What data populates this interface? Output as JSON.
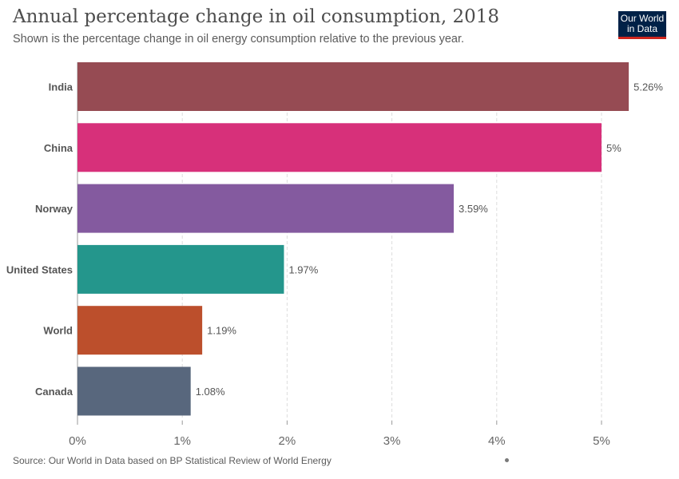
{
  "header": {
    "title": "Annual percentage change in oil consumption, 2018",
    "subtitle": "Shown is the percentage change in oil energy consumption relative to the previous year."
  },
  "logo": {
    "line1": "Our World",
    "line2": "in Data"
  },
  "footer": {
    "source": "Source: Our World in Data based on BP Statistical Review of World Energy"
  },
  "chart_data": {
    "type": "bar",
    "orientation": "horizontal",
    "title": "Annual percentage change in oil consumption, 2018",
    "categories": [
      "India",
      "China",
      "Norway",
      "United States",
      "World",
      "Canada"
    ],
    "values": [
      5.26,
      5,
      3.59,
      1.97,
      1.19,
      1.08
    ],
    "value_labels": [
      "5.26%",
      "5%",
      "3.59%",
      "1.97%",
      "1.19%",
      "1.08%"
    ],
    "colors": [
      "#964b53",
      "#d7307a",
      "#845a9f",
      "#24968c",
      "#bc4f2c",
      "#58677d"
    ],
    "xlim": [
      0,
      5.26
    ],
    "x_ticks": [
      0,
      1,
      2,
      3,
      4,
      5
    ],
    "x_tick_labels": [
      "0%",
      "1%",
      "2%",
      "3%",
      "4%",
      "5%"
    ],
    "grid": true,
    "legend": "none"
  }
}
